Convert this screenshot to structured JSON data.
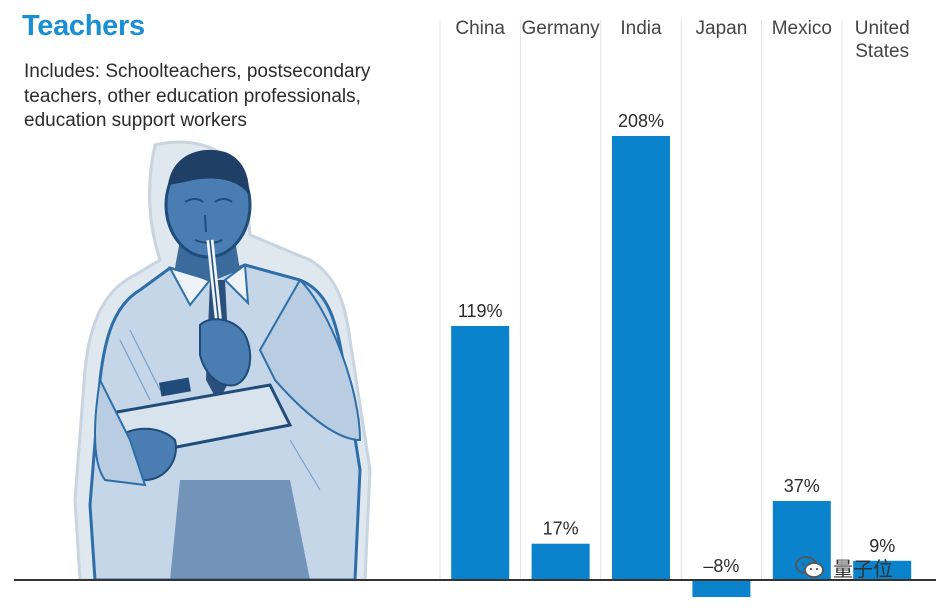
{
  "title": "Teachers",
  "subtitle_lines": [
    "Includes: Schoolteachers, postsecondary",
    "teachers, other education professionals,",
    "education support workers"
  ],
  "watermark": "量子位",
  "colors": {
    "bar": "#0a82cc",
    "title": "#1a8fd3",
    "illustration": "#2e6ea8"
  },
  "chart_data": {
    "type": "bar",
    "title": "Teachers",
    "categories": [
      "China",
      "Germany",
      "India",
      "Japan",
      "Mexico",
      "United States"
    ],
    "category_lines": [
      [
        "China"
      ],
      [
        "Germany"
      ],
      [
        "India"
      ],
      [
        "Japan"
      ],
      [
        "Mexico"
      ],
      [
        "United",
        "States"
      ]
    ],
    "values": [
      119,
      17,
      208,
      -8,
      37,
      9
    ],
    "value_labels": [
      "119%",
      "17%",
      "208%",
      "–8%",
      "37%",
      "9%"
    ],
    "unit": "%",
    "ylim": [
      -8,
      208
    ],
    "grid": "vertical separators",
    "legend": "none"
  }
}
